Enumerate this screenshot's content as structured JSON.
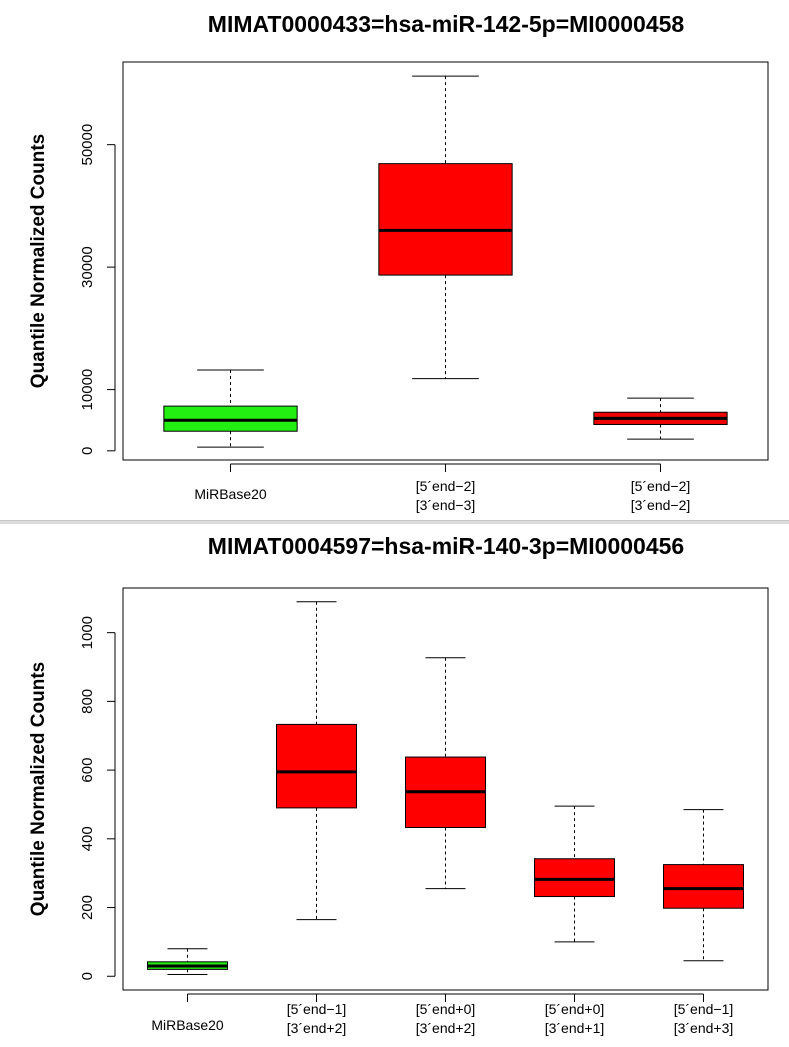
{
  "chart_data": [
    {
      "type": "box",
      "title": "MIMAT0000433=hsa-miR-142-5p=MI0000458",
      "ylabel": "Quantile Normalized Counts",
      "ylim": [
        -1500,
        63500
      ],
      "yticks": [
        0,
        10000,
        30000,
        50000
      ],
      "categories": [
        [
          "MiRBase20"
        ],
        [
          "[5´end−2]",
          "[3´end−3]"
        ],
        [
          "[5´end−2]",
          "[3´end−2]"
        ]
      ],
      "boxes": [
        {
          "whisker_low": 600,
          "q1": 3200,
          "median": 5000,
          "q3": 7300,
          "whisker_high": 13200,
          "color": "#22ee11"
        },
        {
          "whisker_low": 11800,
          "q1": 28700,
          "median": 36000,
          "q3": 46900,
          "whisker_high": 61200,
          "color": "#ff0000"
        },
        {
          "whisker_low": 1900,
          "q1": 4300,
          "median": 5300,
          "q3": 6300,
          "whisker_high": 8600,
          "color": "#ee0000"
        }
      ]
    },
    {
      "type": "box",
      "title": "MIMAT0004597=hsa-miR-140-3p=MI0000456",
      "ylabel": "Quantile Normalized Counts",
      "ylim": [
        -40,
        1130
      ],
      "yticks": [
        0,
        200,
        400,
        600,
        800,
        1000
      ],
      "categories": [
        [
          "MiRBase20"
        ],
        [
          "[5´end−1]",
          "[3´end+2]"
        ],
        [
          "[5´end+0]",
          "[3´end+2]"
        ],
        [
          "[5´end+0]",
          "[3´end+1]"
        ],
        [
          "[5´end−1]",
          "[3´end+3]"
        ]
      ],
      "boxes": [
        {
          "whisker_low": 5,
          "q1": 20,
          "median": 30,
          "q3": 42,
          "whisker_high": 80,
          "color": "#22ee11"
        },
        {
          "whisker_low": 165,
          "q1": 490,
          "median": 595,
          "q3": 733,
          "whisker_high": 1090,
          "color": "#ff0000"
        },
        {
          "whisker_low": 255,
          "q1": 433,
          "median": 537,
          "q3": 638,
          "whisker_high": 927,
          "color": "#ff0000"
        },
        {
          "whisker_low": 100,
          "q1": 232,
          "median": 282,
          "q3": 342,
          "whisker_high": 495,
          "color": "#ff0000"
        },
        {
          "whisker_low": 45,
          "q1": 198,
          "median": 255,
          "q3": 325,
          "whisker_high": 485,
          "color": "#ff0000"
        }
      ]
    }
  ]
}
